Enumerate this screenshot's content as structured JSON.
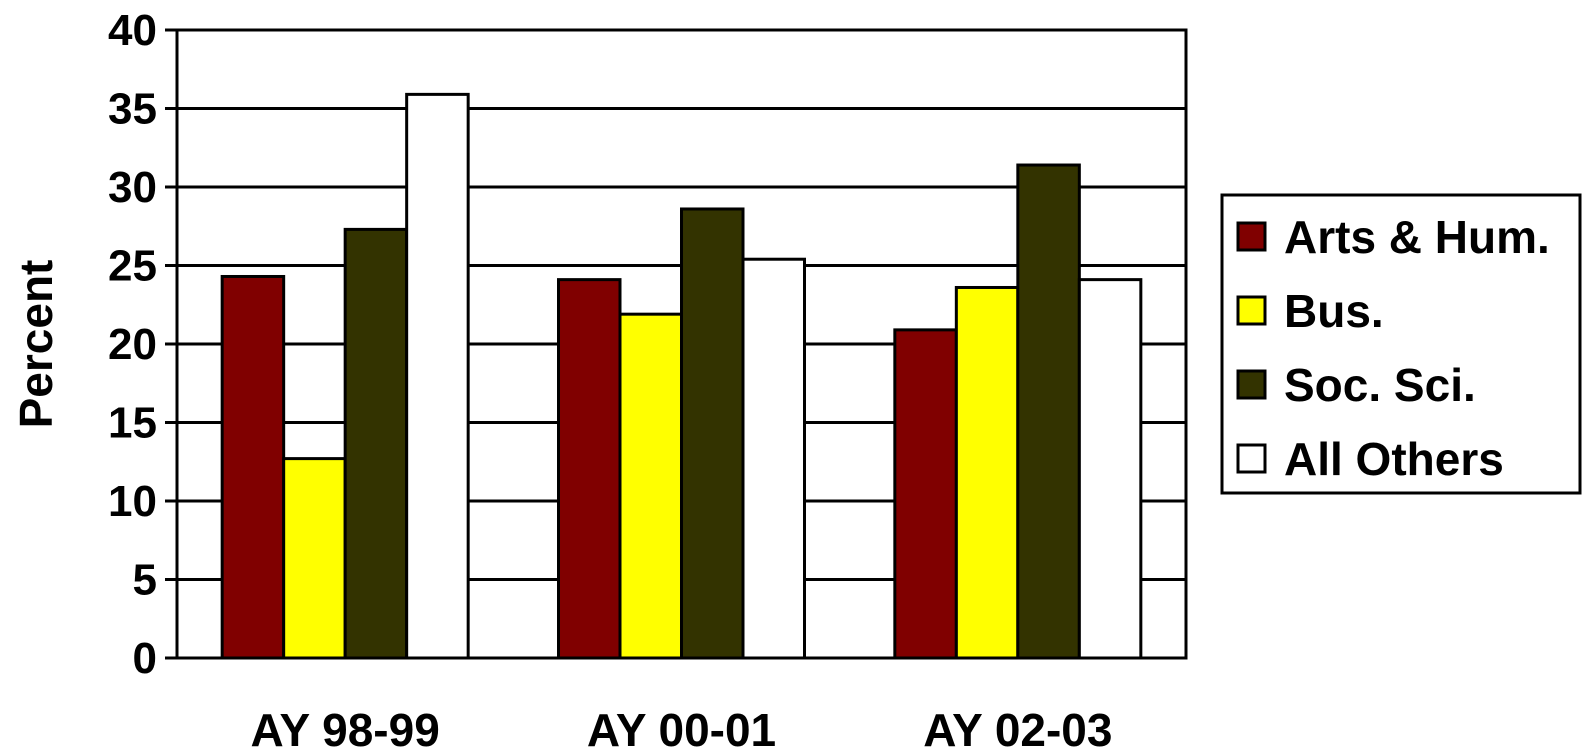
{
  "chart_data": {
    "type": "bar",
    "title": "",
    "xlabel": "",
    "ylabel": "Percent",
    "ylim": [
      0,
      40
    ],
    "yticks": [
      0,
      5,
      10,
      15,
      20,
      25,
      30,
      35,
      40
    ],
    "grid": true,
    "legend_position": "right",
    "categories": [
      "AY 98-99",
      "AY 00-01",
      "AY 02-03"
    ],
    "series": [
      {
        "name": "Arts & Hum.",
        "color": "#800000",
        "values": [
          24.3,
          24.1,
          20.9
        ]
      },
      {
        "name": "Bus.",
        "color": "#ffff00",
        "values": [
          12.7,
          21.9,
          23.6
        ]
      },
      {
        "name": "Soc. Sci.",
        "color": "#333300",
        "values": [
          27.3,
          28.6,
          31.4
        ]
      },
      {
        "name": "All Others",
        "color": "#ffffff",
        "values": [
          35.9,
          25.4,
          24.1
        ]
      }
    ]
  }
}
